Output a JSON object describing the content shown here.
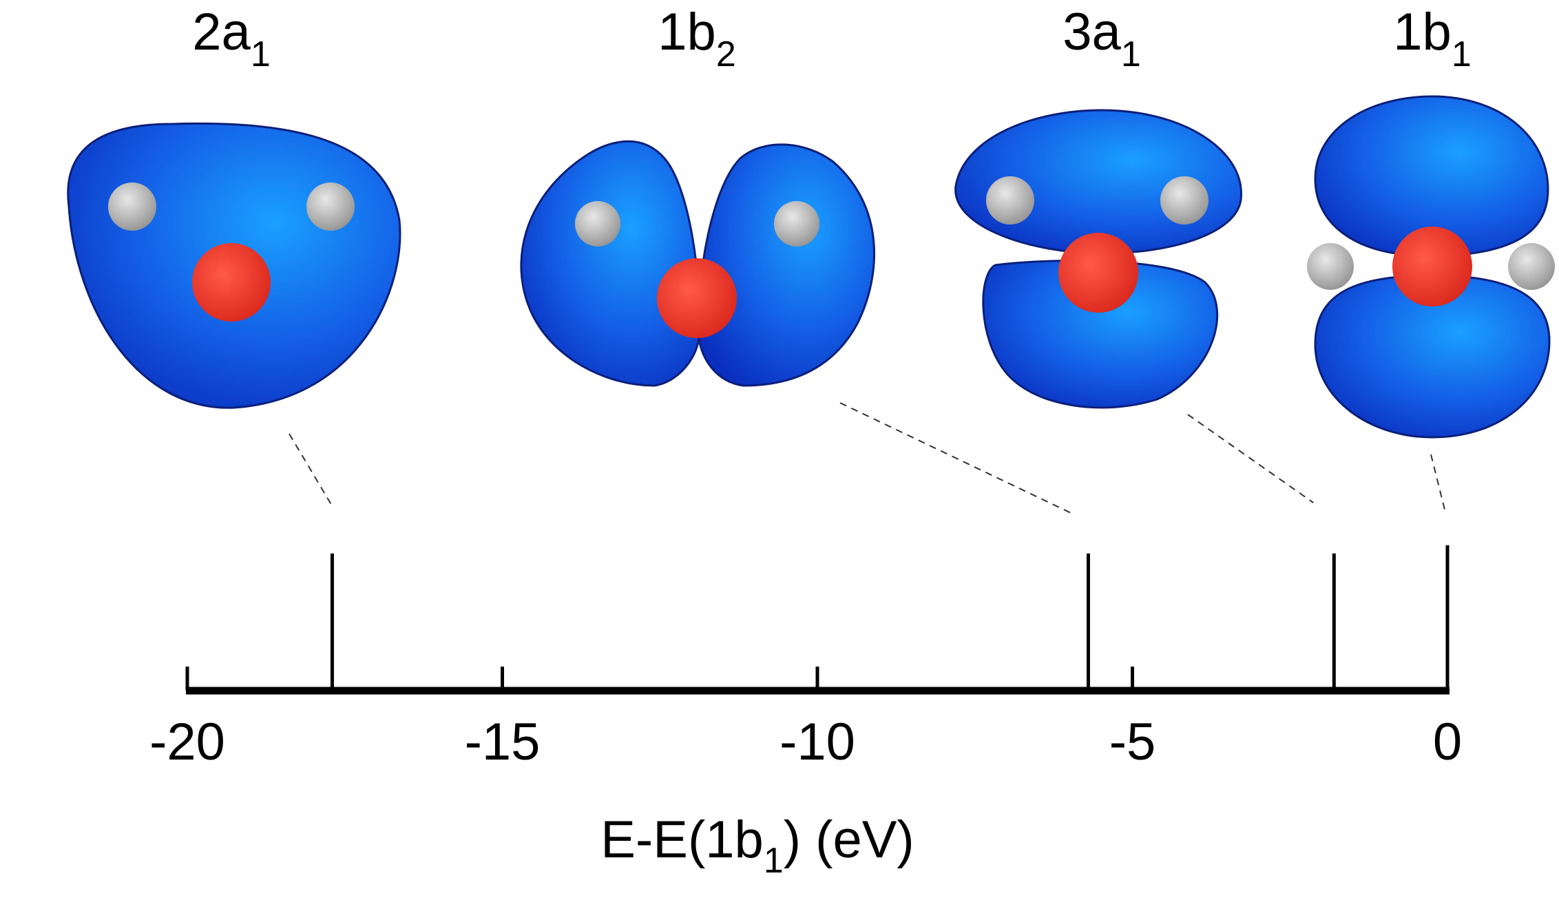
{
  "chart_data": {
    "type": "bar",
    "xlabel": {
      "main": "E-E(1b",
      "sub": "1",
      "tail": ") (eV)"
    },
    "x_ticks": [
      -20,
      -15,
      -10,
      -5,
      0
    ],
    "xlim": [
      -20,
      0
    ],
    "grid": false,
    "lines": [
      {
        "orbital": {
          "main": "2a",
          "sub": "1"
        },
        "energy": -17.7,
        "height": 0.83
      },
      {
        "orbital": {
          "main": "1b",
          "sub": "2"
        },
        "energy": -5.7,
        "height": 0.83
      },
      {
        "orbital": {
          "main": "3a",
          "sub": "1"
        },
        "energy": -1.8,
        "height": 0.83
      },
      {
        "orbital": {
          "main": "1b",
          "sub": "1"
        },
        "energy": 0.0,
        "height": 0.88
      }
    ],
    "colors": {
      "lobe": "#1844d6",
      "lobe_highlight": "#1aa0ff",
      "oxygen": "#e83025",
      "hydrogen": "#a8a8a8",
      "axis": "#000000"
    }
  }
}
